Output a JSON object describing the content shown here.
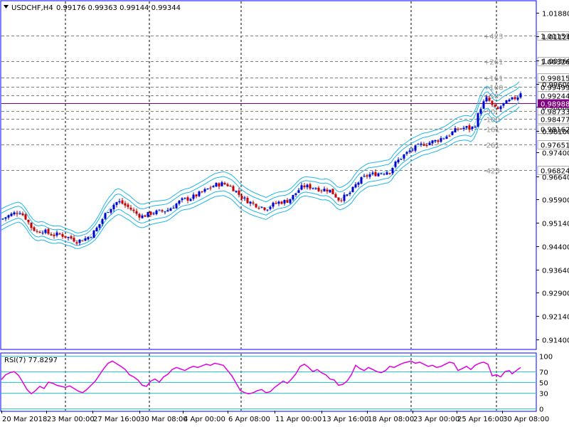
{
  "window": {
    "symbol_label": "USDCHF,H4",
    "ohlc_label": "0.99176 0.99363 0.99144 0.99344",
    "dropdown_icon": "triangle-down-icon"
  },
  "colors": {
    "frame": "#0000ff",
    "grid": "#000000",
    "bull_candle": "#0000cd",
    "bear_candle": "#cc0000",
    "bands": "#1fb6e8",
    "rsi_line": "#e000e0",
    "rsi_levels": "#20d0e0",
    "level_lines": "#808080",
    "price_line": "#800080",
    "current_price_bg": "#800080"
  },
  "current_price": {
    "value": 0.98988,
    "label": "0.98988"
  },
  "chart_data": {
    "type": "candlestick",
    "y_axis": {
      "range": [
        0.911,
        1.0225
      ],
      "ticks": [
        "1.01880",
        "1.01120",
        "1.00360",
        "0.99600",
        "0.98860",
        "0.98100",
        "0.97400",
        "0.96640",
        "0.95900",
        "0.95140",
        "0.94400",
        "0.93640",
        "0.92900",
        "0.92140",
        "0.91400"
      ]
    },
    "x_axis": {
      "ticks": [
        "20 Mar 2018",
        "23 Mar 00:00",
        "27 Mar 16:00",
        "30 Mar 08:00",
        "4 Apr 00:00",
        "6 Apr 08:00",
        "11 Apr 00:00",
        "13 Apr 16:00",
        "18 Apr 08:00",
        "23 Apr 00:00",
        "25 Apr 16:00",
        "30 Apr 08:00"
      ]
    },
    "price_levels": [
      {
        "label": "1.01153",
        "value": 1.01153,
        "annotation": "+423"
      },
      {
        "label": "1.00326",
        "value": 1.00326,
        "annotation": "+261"
      },
      {
        "label": "0.99815",
        "value": 0.99815,
        "annotation": "+161"
      },
      {
        "label": "0.99499",
        "value": 0.99499,
        "annotation": "+100"
      },
      {
        "label": "0.99244",
        "value": 0.99244,
        "annotation": "+50"
      },
      {
        "label": "0.98733",
        "value": 0.98733,
        "annotation": "-50"
      },
      {
        "label": "0.98477",
        "value": 0.98477,
        "annotation": "-100"
      },
      {
        "label": "0.98162",
        "value": 0.98162,
        "annotation": "-161"
      },
      {
        "label": "0.97651",
        "value": 0.97651,
        "annotation": "-261"
      },
      {
        "label": "0.96824",
        "value": 0.96824,
        "annotation": "-423"
      }
    ],
    "close_path": [
      [
        0,
        0.9525
      ],
      [
        8,
        0.9535
      ],
      [
        18,
        0.9545
      ],
      [
        26,
        0.955
      ],
      [
        34,
        0.953
      ],
      [
        42,
        0.95
      ],
      [
        50,
        0.9485
      ],
      [
        58,
        0.949
      ],
      [
        66,
        0.948
      ],
      [
        74,
        0.9475
      ],
      [
        82,
        0.9478
      ],
      [
        90,
        0.947
      ],
      [
        98,
        0.9465
      ],
      [
        106,
        0.9455
      ],
      [
        114,
        0.946
      ],
      [
        120,
        0.9465
      ],
      [
        126,
        0.9475
      ],
      [
        132,
        0.949
      ],
      [
        138,
        0.951
      ],
      [
        144,
        0.9535
      ],
      [
        150,
        0.9555
      ],
      [
        156,
        0.9568
      ],
      [
        160,
        0.9578
      ],
      [
        164,
        0.9582
      ],
      [
        168,
        0.958
      ],
      [
        174,
        0.957
      ],
      [
        180,
        0.9562
      ],
      [
        186,
        0.955
      ],
      [
        192,
        0.954
      ],
      [
        198,
        0.9535
      ],
      [
        204,
        0.954
      ],
      [
        210,
        0.9545
      ],
      [
        216,
        0.9548
      ],
      [
        222,
        0.955
      ],
      [
        228,
        0.9552
      ],
      [
        234,
        0.9555
      ],
      [
        240,
        0.9565
      ],
      [
        246,
        0.9575
      ],
      [
        252,
        0.9585
      ],
      [
        258,
        0.959
      ],
      [
        264,
        0.9592
      ],
      [
        270,
        0.9598
      ],
      [
        276,
        0.9605
      ],
      [
        282,
        0.9612
      ],
      [
        288,
        0.962
      ],
      [
        294,
        0.9628
      ],
      [
        300,
        0.9635
      ],
      [
        306,
        0.9638
      ],
      [
        312,
        0.964
      ],
      [
        318,
        0.9636
      ],
      [
        324,
        0.9628
      ],
      [
        330,
        0.9615
      ],
      [
        336,
        0.96
      ],
      [
        342,
        0.959
      ],
      [
        348,
        0.9582
      ],
      [
        354,
        0.9575
      ],
      [
        360,
        0.957
      ],
      [
        366,
        0.9565
      ],
      [
        372,
        0.956
      ],
      [
        378,
        0.9568
      ],
      [
        384,
        0.9575
      ],
      [
        390,
        0.958
      ],
      [
        396,
        0.9582
      ],
      [
        402,
        0.9585
      ],
      [
        408,
        0.9595
      ],
      [
        414,
        0.961
      ],
      [
        420,
        0.9625
      ],
      [
        426,
        0.9632
      ],
      [
        432,
        0.963
      ],
      [
        438,
        0.9628
      ],
      [
        444,
        0.9625
      ],
      [
        450,
        0.962
      ],
      [
        456,
        0.9622
      ],
      [
        462,
        0.9618
      ],
      [
        468,
        0.9605
      ],
      [
        474,
        0.959
      ],
      [
        480,
        0.9595
      ],
      [
        486,
        0.9602
      ],
      [
        492,
        0.9615
      ],
      [
        498,
        0.9635
      ],
      [
        504,
        0.965
      ],
      [
        510,
        0.966
      ],
      [
        516,
        0.9668
      ],
      [
        522,
        0.967
      ],
      [
        528,
        0.9672
      ],
      [
        534,
        0.9675
      ],
      [
        540,
        0.9678
      ],
      [
        546,
        0.968
      ],
      [
        552,
        0.97
      ],
      [
        558,
        0.9715
      ],
      [
        564,
        0.9728
      ],
      [
        570,
        0.9738
      ],
      [
        576,
        0.9748
      ],
      [
        582,
        0.9755
      ],
      [
        588,
        0.9762
      ],
      [
        594,
        0.9768
      ],
      [
        600,
        0.977
      ],
      [
        606,
        0.9775
      ],
      [
        612,
        0.9778
      ],
      [
        618,
        0.9785
      ],
      [
        624,
        0.979
      ],
      [
        630,
        0.9798
      ],
      [
        636,
        0.9808
      ],
      [
        642,
        0.9815
      ],
      [
        648,
        0.9818
      ],
      [
        654,
        0.982
      ],
      [
        660,
        0.9815
      ],
      [
        666,
        0.983
      ],
      [
        670,
        0.986
      ],
      [
        674,
        0.9885
      ],
      [
        678,
        0.99
      ],
      [
        682,
        0.9912
      ],
      [
        686,
        0.9905
      ],
      [
        690,
        0.989
      ],
      [
        694,
        0.988
      ],
      [
        698,
        0.9878
      ],
      [
        702,
        0.9888
      ],
      [
        706,
        0.9895
      ],
      [
        710,
        0.99
      ],
      [
        714,
        0.9905
      ],
      [
        718,
        0.991
      ],
      [
        722,
        0.9915
      ],
      [
        726,
        0.992
      ],
      [
        730,
        0.9934
      ]
    ],
    "band_width": [
      [
        0,
        0.0034
      ],
      [
        120,
        0.0024
      ],
      [
        160,
        0.0042
      ],
      [
        250,
        0.0032
      ],
      [
        330,
        0.004
      ],
      [
        420,
        0.003
      ],
      [
        500,
        0.0038
      ],
      [
        620,
        0.0034
      ],
      [
        680,
        0.0044
      ],
      [
        730,
        0.004
      ]
    ],
    "rsi": {
      "label": "RSI(7) 77.8297",
      "last_value": 77.8297,
      "range": [
        0,
        100
      ],
      "levels": [
        100,
        70,
        50,
        30,
        0
      ],
      "level_labels": [
        "100",
        "70",
        "50",
        "30",
        "0"
      ],
      "series": [
        [
          0,
          55
        ],
        [
          6,
          64
        ],
        [
          12,
          68
        ],
        [
          18,
          70
        ],
        [
          24,
          63
        ],
        [
          30,
          50
        ],
        [
          36,
          36
        ],
        [
          42,
          28
        ],
        [
          48,
          34
        ],
        [
          54,
          42
        ],
        [
          60,
          38
        ],
        [
          66,
          50
        ],
        [
          72,
          48
        ],
        [
          78,
          44
        ],
        [
          84,
          42
        ],
        [
          90,
          40
        ],
        [
          96,
          43
        ],
        [
          102,
          38
        ],
        [
          108,
          33
        ],
        [
          114,
          30
        ],
        [
          120,
          36
        ],
        [
          126,
          44
        ],
        [
          132,
          52
        ],
        [
          138,
          64
        ],
        [
          144,
          76
        ],
        [
          150,
          86
        ],
        [
          156,
          90
        ],
        [
          162,
          85
        ],
        [
          168,
          80
        ],
        [
          174,
          74
        ],
        [
          180,
          64
        ],
        [
          186,
          60
        ],
        [
          192,
          54
        ],
        [
          198,
          44
        ],
        [
          204,
          42
        ],
        [
          210,
          52
        ],
        [
          216,
          56
        ],
        [
          222,
          50
        ],
        [
          228,
          60
        ],
        [
          234,
          65
        ],
        [
          240,
          74
        ],
        [
          246,
          78
        ],
        [
          252,
          75
        ],
        [
          258,
          72
        ],
        [
          264,
          77
        ],
        [
          270,
          80
        ],
        [
          276,
          78
        ],
        [
          282,
          81
        ],
        [
          288,
          84
        ],
        [
          294,
          82
        ],
        [
          300,
          86
        ],
        [
          306,
          84
        ],
        [
          312,
          82
        ],
        [
          318,
          72
        ],
        [
          324,
          62
        ],
        [
          330,
          48
        ],
        [
          336,
          34
        ],
        [
          342,
          30
        ],
        [
          348,
          28
        ],
        [
          354,
          30
        ],
        [
          360,
          34
        ],
        [
          366,
          36
        ],
        [
          372,
          30
        ],
        [
          378,
          32
        ],
        [
          384,
          40
        ],
        [
          390,
          46
        ],
        [
          396,
          52
        ],
        [
          402,
          48
        ],
        [
          408,
          56
        ],
        [
          414,
          66
        ],
        [
          420,
          80
        ],
        [
          426,
          84
        ],
        [
          432,
          78
        ],
        [
          438,
          70
        ],
        [
          444,
          74
        ],
        [
          450,
          68
        ],
        [
          456,
          64
        ],
        [
          462,
          56
        ],
        [
          468,
          54
        ],
        [
          474,
          44
        ],
        [
          480,
          46
        ],
        [
          486,
          52
        ],
        [
          492,
          64
        ],
        [
          498,
          82
        ],
        [
          504,
          76
        ],
        [
          510,
          72
        ],
        [
          516,
          78
        ],
        [
          522,
          74
        ],
        [
          528,
          70
        ],
        [
          534,
          68
        ],
        [
          540,
          72
        ],
        [
          546,
          80
        ],
        [
          552,
          78
        ],
        [
          558,
          82
        ],
        [
          564,
          86
        ],
        [
          570,
          88
        ],
        [
          576,
          90
        ],
        [
          582,
          86
        ],
        [
          588,
          88
        ],
        [
          594,
          84
        ],
        [
          600,
          80
        ],
        [
          606,
          82
        ],
        [
          612,
          78
        ],
        [
          618,
          80
        ],
        [
          624,
          84
        ],
        [
          630,
          88
        ],
        [
          636,
          86
        ],
        [
          642,
          72
        ],
        [
          648,
          76
        ],
        [
          654,
          80
        ],
        [
          660,
          74
        ],
        [
          666,
          82
        ],
        [
          672,
          86
        ],
        [
          678,
          88
        ],
        [
          684,
          84
        ],
        [
          690,
          62
        ],
        [
          696,
          64
        ],
        [
          702,
          60
        ],
        [
          708,
          70
        ],
        [
          714,
          72
        ],
        [
          718,
          66
        ],
        [
          722,
          70
        ],
        [
          726,
          74
        ],
        [
          730,
          78
        ]
      ]
    }
  }
}
